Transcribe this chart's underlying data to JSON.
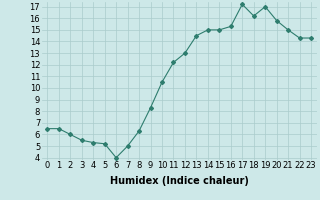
{
  "x": [
    0,
    1,
    2,
    3,
    4,
    5,
    6,
    7,
    8,
    9,
    10,
    11,
    12,
    13,
    14,
    15,
    16,
    17,
    18,
    19,
    20,
    21,
    22,
    23
  ],
  "y": [
    6.5,
    6.5,
    6.0,
    5.5,
    5.3,
    5.2,
    4.0,
    5.0,
    6.3,
    8.3,
    10.5,
    12.2,
    13.0,
    14.5,
    15.0,
    15.0,
    15.3,
    17.2,
    16.2,
    17.0,
    15.8,
    15.0,
    14.3,
    14.3
  ],
  "xlabel": "Humidex (Indice chaleur)",
  "xlim_min": -0.5,
  "xlim_max": 23.5,
  "ylim_min": 3.8,
  "ylim_max": 17.4,
  "yticks": [
    4,
    5,
    6,
    7,
    8,
    9,
    10,
    11,
    12,
    13,
    14,
    15,
    16,
    17
  ],
  "xticks": [
    0,
    1,
    2,
    3,
    4,
    5,
    6,
    7,
    8,
    9,
    10,
    11,
    12,
    13,
    14,
    15,
    16,
    17,
    18,
    19,
    20,
    21,
    22,
    23
  ],
  "xtick_labels": [
    "0",
    "1",
    "2",
    "3",
    "4",
    "5",
    "6",
    "7",
    "8",
    "9",
    "10",
    "11",
    "12",
    "13",
    "14",
    "15",
    "16",
    "17",
    "18",
    "19",
    "20",
    "21",
    "22",
    "23"
  ],
  "line_color": "#2e7d6e",
  "marker": "D",
  "marker_size": 2.0,
  "bg_color": "#cde8e8",
  "grid_color": "#aacccc",
  "tick_fontsize": 6.0,
  "xlabel_fontsize": 7.0
}
